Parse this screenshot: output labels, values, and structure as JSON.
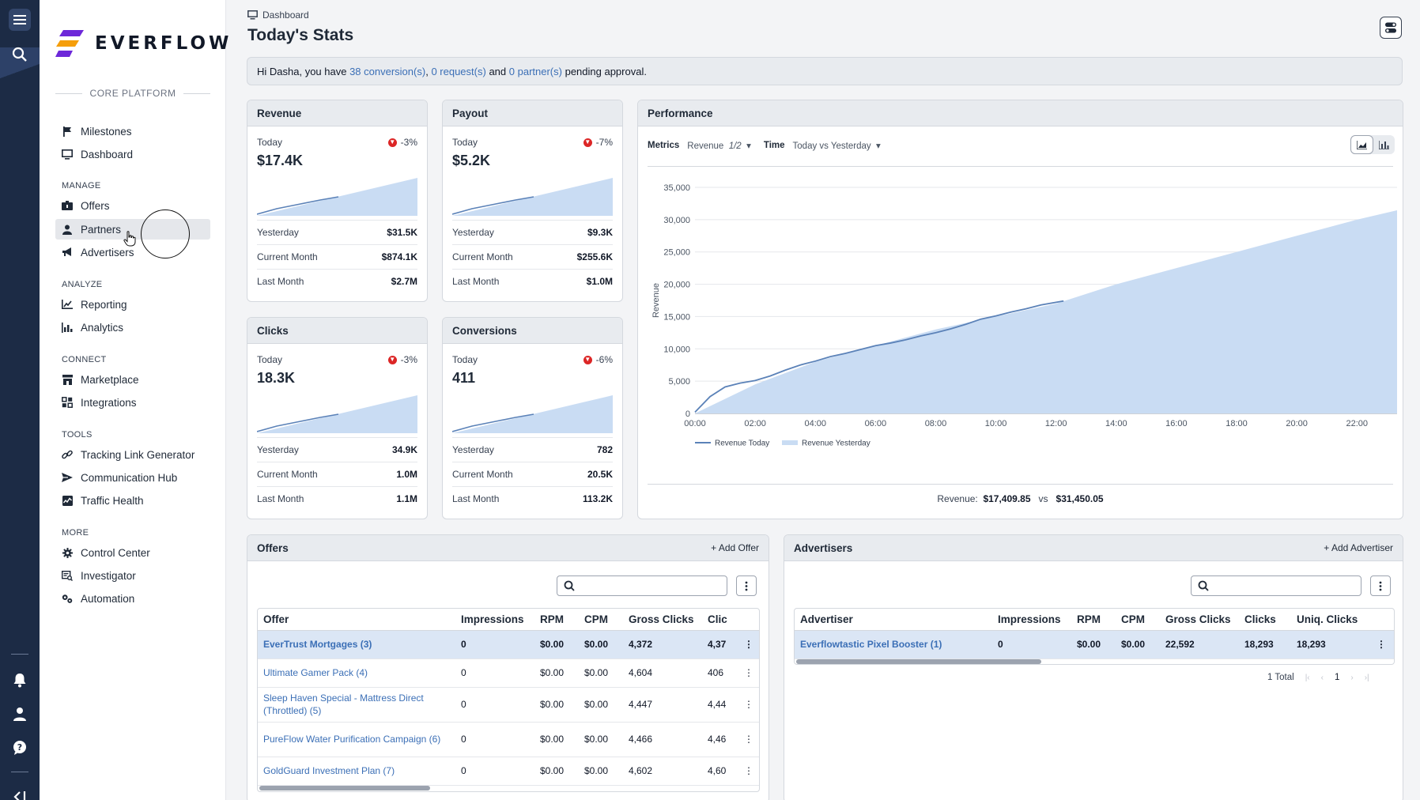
{
  "app": {
    "name": "EVERFLOW",
    "core_label": "CORE PLATFORM"
  },
  "icons": {
    "menu": "hamburger-icon",
    "search": "search-icon",
    "bell": "bell-icon",
    "user": "user-icon",
    "help": "help-icon",
    "collapse": "collapse-icon"
  },
  "nav": {
    "top": [
      {
        "label": "Milestones"
      },
      {
        "label": "Dashboard"
      }
    ],
    "manage": {
      "title": "MANAGE",
      "items": [
        {
          "label": "Offers"
        },
        {
          "label": "Partners"
        },
        {
          "label": "Advertisers"
        }
      ]
    },
    "analyze": {
      "title": "ANALYZE",
      "items": [
        {
          "label": "Reporting"
        },
        {
          "label": "Analytics"
        }
      ]
    },
    "connect": {
      "title": "CONNECT",
      "items": [
        {
          "label": "Marketplace"
        },
        {
          "label": "Integrations"
        }
      ]
    },
    "tools": {
      "title": "TOOLS",
      "items": [
        {
          "label": "Tracking Link Generator"
        },
        {
          "label": "Communication Hub"
        },
        {
          "label": "Traffic Health"
        }
      ]
    },
    "more": {
      "title": "MORE",
      "items": [
        {
          "label": "Control Center"
        },
        {
          "label": "Investigator"
        },
        {
          "label": "Automation"
        }
      ]
    }
  },
  "header": {
    "breadcrumb": "Dashboard",
    "title": "Today's Stats"
  },
  "banner": {
    "prefix": "Hi Dasha, you have ",
    "conversions": "38 conversion(s)",
    "sep1": ", ",
    "requests": "0 request(s)",
    "sep2": " and ",
    "partners": "0 partner(s)",
    "suffix": " pending approval."
  },
  "stats": [
    {
      "title": "Revenue",
      "today_label": "Today",
      "delta": "-3%",
      "value": "$17.4K",
      "rows": [
        {
          "label": "Yesterday",
          "value": "$31.5K"
        },
        {
          "label": "Current Month",
          "value": "$874.1K"
        },
        {
          "label": "Last Month",
          "value": "$2.7M"
        }
      ]
    },
    {
      "title": "Payout",
      "today_label": "Today",
      "delta": "-7%",
      "value": "$5.2K",
      "rows": [
        {
          "label": "Yesterday",
          "value": "$9.3K"
        },
        {
          "label": "Current Month",
          "value": "$255.6K"
        },
        {
          "label": "Last Month",
          "value": "$1.0M"
        }
      ]
    },
    {
      "title": "Clicks",
      "today_label": "Today",
      "delta": "-3%",
      "value": "18.3K",
      "rows": [
        {
          "label": "Yesterday",
          "value": "34.9K"
        },
        {
          "label": "Current Month",
          "value": "1.0M"
        },
        {
          "label": "Last Month",
          "value": "1.1M"
        }
      ]
    },
    {
      "title": "Conversions",
      "today_label": "Today",
      "delta": "-6%",
      "value": "411",
      "rows": [
        {
          "label": "Yesterday",
          "value": "782"
        },
        {
          "label": "Current Month",
          "value": "20.5K"
        },
        {
          "label": "Last Month",
          "value": "113.2K"
        }
      ]
    }
  ],
  "performance": {
    "title": "Performance",
    "metrics_label": "Metrics",
    "metrics_value": "Revenue",
    "metrics_count": "1/2",
    "time_label": "Time",
    "time_value": "Today vs Yesterday",
    "summary_label": "Revenue:",
    "summary_today": "$17,409.85",
    "summary_vs": "vs",
    "summary_yesterday": "$31,450.05"
  },
  "chart_data": {
    "type": "area",
    "ylabel": "Revenue",
    "ylim": [
      0,
      35000
    ],
    "yticks": [
      "0",
      "5,000",
      "10,000",
      "15,000",
      "20,000",
      "25,000",
      "30,000",
      "35,000"
    ],
    "xticks": [
      "00:00",
      "02:00",
      "04:00",
      "06:00",
      "08:00",
      "10:00",
      "12:00",
      "14:00",
      "16:00",
      "18:00",
      "20:00",
      "22:00"
    ],
    "series": [
      {
        "name": "Revenue Today",
        "color": "#5b82b8",
        "x": [
          "00:00",
          "00:30",
          "01:00",
          "01:30",
          "02:00",
          "02:30",
          "03:00",
          "03:30",
          "04:00",
          "04:30",
          "05:00",
          "05:30",
          "06:00",
          "06:30",
          "07:00",
          "07:30",
          "08:00",
          "08:30",
          "09:00",
          "09:30",
          "10:00",
          "10:30",
          "11:00",
          "11:30",
          "12:15"
        ],
        "values": [
          200,
          2600,
          4100,
          4700,
          5100,
          5800,
          6700,
          7500,
          8100,
          8800,
          9300,
          9900,
          10500,
          10900,
          11400,
          12000,
          12500,
          13100,
          13800,
          14600,
          15100,
          15700,
          16200,
          16800,
          17410
        ]
      },
      {
        "name": "Revenue Yesterday",
        "color": "#c9dcf3",
        "x": [
          "00:00",
          "02:00",
          "04:00",
          "06:00",
          "08:00",
          "10:00",
          "12:00",
          "14:00",
          "16:00",
          "18:00",
          "20:00",
          "22:00",
          "23:59"
        ],
        "values": [
          0,
          4500,
          8000,
          10500,
          13000,
          15000,
          17000,
          20000,
          22500,
          25000,
          27500,
          30000,
          31450
        ]
      }
    ]
  },
  "offers": {
    "title": "Offers",
    "add_label": "+ Add Offer",
    "columns": [
      "Offer",
      "Impressions",
      "RPM",
      "CPM",
      "Gross Clicks",
      "Clic"
    ],
    "rows": [
      {
        "name": "EverTrust Mortgages (3)",
        "impressions": "0",
        "rpm": "$0.00",
        "cpm": "$0.00",
        "gross": "4,372",
        "clicks": "4,37"
      },
      {
        "name": "Ultimate Gamer Pack (4)",
        "impressions": "0",
        "rpm": "$0.00",
        "cpm": "$0.00",
        "gross": "4,604",
        "clicks": "406"
      },
      {
        "name": "Sleep Haven Special - Mattress Direct (Throttled) (5)",
        "impressions": "0",
        "rpm": "$0.00",
        "cpm": "$0.00",
        "gross": "4,447",
        "clicks": "4,44"
      },
      {
        "name": "PureFlow Water Purification Campaign (6)",
        "impressions": "0",
        "rpm": "$0.00",
        "cpm": "$0.00",
        "gross": "4,466",
        "clicks": "4,46"
      },
      {
        "name": "GoldGuard Investment Plan (7)",
        "impressions": "0",
        "rpm": "$0.00",
        "cpm": "$0.00",
        "gross": "4,602",
        "clicks": "4,60"
      }
    ]
  },
  "advertisers": {
    "title": "Advertisers",
    "add_label": "+ Add Advertiser",
    "columns": [
      "Advertiser",
      "Impressions",
      "RPM",
      "CPM",
      "Gross Clicks",
      "Clicks",
      "Uniq. Clicks"
    ],
    "rows": [
      {
        "name": "Everflowtastic Pixel Booster (1)",
        "impressions": "0",
        "rpm": "$0.00",
        "cpm": "$0.00",
        "gross": "22,592",
        "clicks": "18,293",
        "uniq": "18,293"
      }
    ],
    "total": "1 Total",
    "page": "1"
  }
}
